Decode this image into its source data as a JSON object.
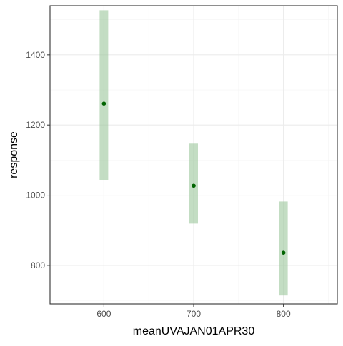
{
  "chart_data": {
    "type": "scatter",
    "title": "",
    "xlabel": "meanUVAJAN01APR30",
    "ylabel": "response",
    "xlim": [
      540,
      860
    ],
    "ylim": [
      690,
      1540
    ],
    "x_ticks": [
      600,
      700,
      800
    ],
    "y_ticks": [
      800,
      1000,
      1200,
      1400
    ],
    "grid": true,
    "legend": "none",
    "series": [
      {
        "points": [
          {
            "x": 600,
            "y": 1261,
            "lower": 1043,
            "upper": 1527
          },
          {
            "x": 700,
            "y": 1027,
            "lower": 919,
            "upper": 1147
          },
          {
            "x": 800,
            "y": 836,
            "lower": 714,
            "upper": 982
          }
        ]
      }
    ],
    "colors": {
      "point": "#006400",
      "band": "#9bc79b",
      "band_opacity": 0.6,
      "grid_major": "#ebebeb",
      "grid_minor": "#f4f4f4",
      "panel_border": "#333333",
      "tick_text": "#4d4d4d",
      "axis_title": "#000000"
    }
  }
}
